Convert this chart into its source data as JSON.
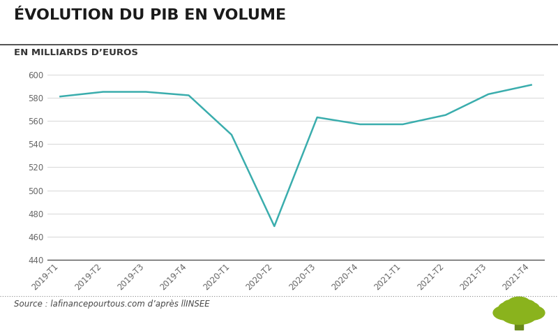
{
  "title": "ÉVOLUTION DU PIB EN VOLUME",
  "subtitle": "EN MILLIARDS D’EUROS",
  "source": "Source : lafinancepourtous.com d’après l|INSEE",
  "x_labels": [
    "2019-T1",
    "2019-T2",
    "2019-T3",
    "2019-T4",
    "2020-T1",
    "2020-T2",
    "2020-T3",
    "2020-T4",
    "2021-T1",
    "2021-T2",
    "2021-T3",
    "2021-T4"
  ],
  "y_values": [
    581,
    585,
    585,
    582,
    548,
    469,
    563,
    557,
    557,
    565,
    583,
    591
  ],
  "line_color": "#3aadad",
  "line_width": 1.8,
  "ylim": [
    440,
    610
  ],
  "yticks": [
    440,
    460,
    480,
    500,
    520,
    540,
    560,
    580,
    600
  ],
  "background_color": "#ffffff",
  "plot_bg_color": "#ffffff",
  "grid_color": "#d0d0d0",
  "title_fontsize": 16,
  "subtitle_fontsize": 9.5,
  "tick_fontsize": 8.5,
  "source_fontsize": 8.5,
  "title_color": "#1a1a1a",
  "subtitle_color": "#333333",
  "tick_color": "#666666",
  "source_color": "#444444",
  "tree_color": "#8ab31d",
  "tree_trunk_color": "#6a8a1a"
}
